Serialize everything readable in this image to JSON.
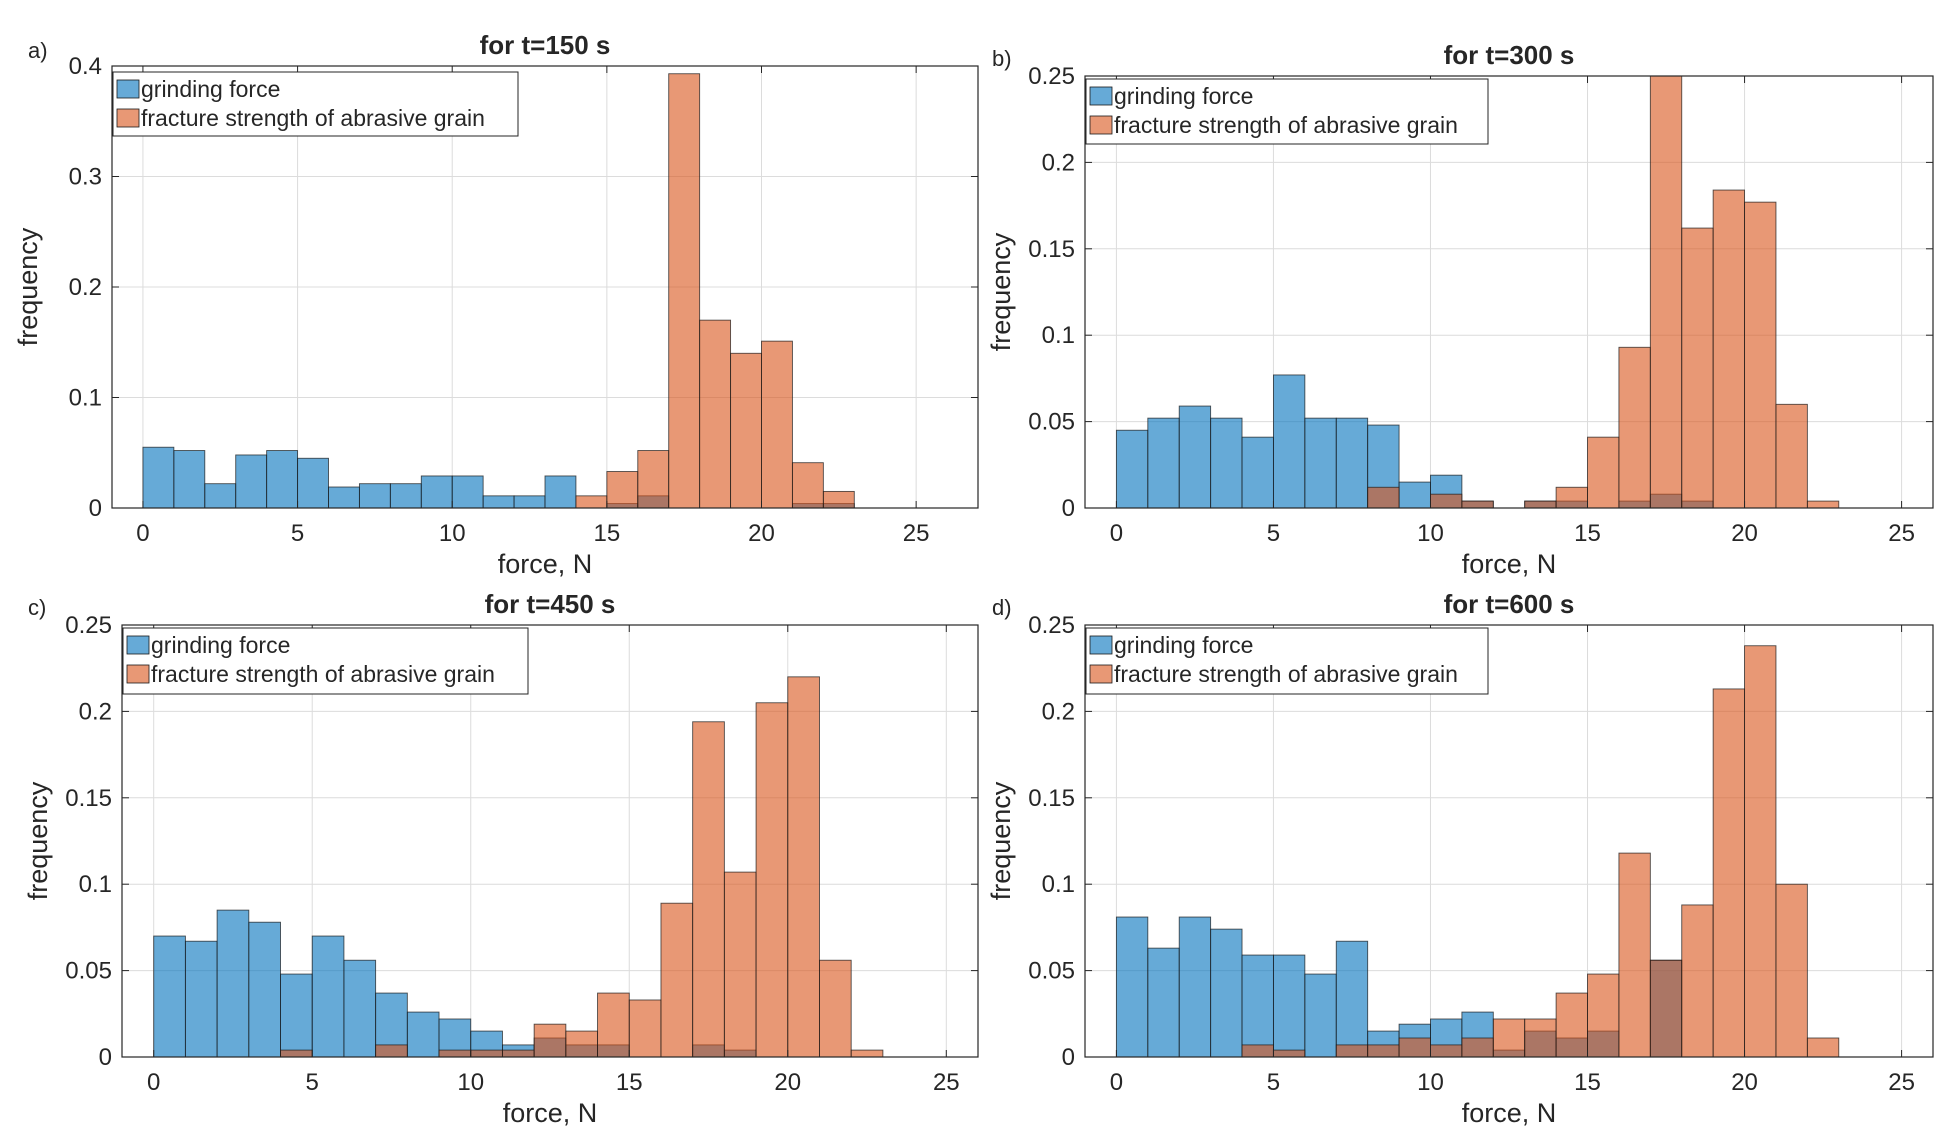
{
  "colors": {
    "grinding": "#0072BD",
    "fracture": "#D95319",
    "grid": "#dcdcdc",
    "axis": "#262626"
  },
  "chart_data": [
    {
      "panel": "a)",
      "type": "bar",
      "title": "for t=150 s",
      "xlabel": "force, N",
      "ylabel": "frequency",
      "xlim": [
        -1,
        27
      ],
      "ylim": [
        0,
        0.4
      ],
      "xticks": [
        "0",
        "5",
        "10",
        "15",
        "20",
        "25"
      ],
      "xtick_values": [
        0,
        5,
        10,
        15,
        20,
        25
      ],
      "yticks": [
        "0",
        "0.1",
        "0.2",
        "0.3",
        "0.4"
      ],
      "ytick_values": [
        0,
        0.1,
        0.2,
        0.3,
        0.4
      ],
      "bin_width": 1,
      "legend": [
        "grinding force",
        "fracture strength of abrasive grain"
      ],
      "series": [
        {
          "name": "grinding force",
          "bins": [
            0,
            1,
            2,
            3,
            4,
            5,
            6,
            7,
            8,
            9,
            10,
            11,
            12,
            13,
            14,
            15,
            16,
            21,
            22
          ],
          "values": [
            0.055,
            0.052,
            0.022,
            0.048,
            0.052,
            0.045,
            0.019,
            0.022,
            0.022,
            0.029,
            0.029,
            0.011,
            0.011,
            0.029,
            0,
            0.004,
            0.011,
            0.004,
            0.004
          ]
        },
        {
          "name": "fracture strength of abrasive grain",
          "bins": [
            14,
            15,
            16,
            17,
            18,
            19,
            20,
            21,
            22
          ],
          "values": [
            0.011,
            0.033,
            0.052,
            0.393,
            0.17,
            0.14,
            0.151,
            0.041,
            0.015
          ]
        }
      ]
    },
    {
      "panel": "b)",
      "type": "bar",
      "title": "for t=300 s",
      "xlabel": "force, N",
      "ylabel": "frequency",
      "xlim": [
        -1,
        26
      ],
      "ylim": [
        0,
        0.25
      ],
      "xticks": [
        "0",
        "5",
        "10",
        "15",
        "20",
        "25"
      ],
      "xtick_values": [
        0,
        5,
        10,
        15,
        20,
        25
      ],
      "yticks": [
        "0",
        "0.05",
        "0.1",
        "0.15",
        "0.2",
        "0.25"
      ],
      "ytick_values": [
        0,
        0.05,
        0.1,
        0.15,
        0.2,
        0.25
      ],
      "bin_width": 1,
      "legend": [
        "grinding force",
        "fracture strength of abrasive grain"
      ],
      "series": [
        {
          "name": "grinding force",
          "bins": [
            0,
            1,
            2,
            3,
            4,
            5,
            6,
            7,
            8,
            9,
            10,
            11,
            13,
            14,
            15,
            16,
            17,
            18
          ],
          "values": [
            0.045,
            0.052,
            0.059,
            0.052,
            0.041,
            0.077,
            0.052,
            0.052,
            0.048,
            0.015,
            0.019,
            0.004,
            0.004,
            0.004,
            0,
            0.004,
            0.008,
            0.004
          ]
        },
        {
          "name": "fracture strength of abrasive grain",
          "bins": [
            8,
            10,
            11,
            13,
            14,
            15,
            16,
            17,
            18,
            19,
            20,
            21,
            22
          ],
          "values": [
            0.012,
            0.008,
            0.004,
            0.004,
            0.012,
            0.041,
            0.093,
            0.25,
            0.162,
            0.184,
            0.177,
            0.06,
            0.004
          ]
        }
      ]
    },
    {
      "panel": "c)",
      "type": "bar",
      "title": "for t=450 s",
      "xlabel": "force, N",
      "ylabel": "frequency",
      "xlim": [
        -1,
        26
      ],
      "ylim": [
        0,
        0.25
      ],
      "xticks": [
        "0",
        "5",
        "10",
        "15",
        "20",
        "25"
      ],
      "xtick_values": [
        0,
        5,
        10,
        15,
        20,
        25
      ],
      "yticks": [
        "0",
        "0.05",
        "0.1",
        "0.15",
        "0.2",
        "0.25"
      ],
      "ytick_values": [
        0,
        0.05,
        0.1,
        0.15,
        0.2,
        0.25
      ],
      "bin_width": 1,
      "legend": [
        "grinding force",
        "fracture strength of abrasive grain"
      ],
      "series": [
        {
          "name": "grinding force",
          "bins": [
            0,
            1,
            2,
            3,
            4,
            5,
            6,
            7,
            8,
            9,
            10,
            11,
            12,
            13,
            14,
            17,
            18
          ],
          "values": [
            0.07,
            0.067,
            0.085,
            0.078,
            0.048,
            0.07,
            0.056,
            0.037,
            0.026,
            0.022,
            0.015,
            0.007,
            0.011,
            0.007,
            0.007,
            0.007,
            0.004
          ]
        },
        {
          "name": "fracture strength of abrasive grain",
          "bins": [
            4,
            7,
            9,
            10,
            11,
            12,
            13,
            14,
            15,
            16,
            17,
            18,
            19,
            20,
            21,
            22
          ],
          "values": [
            0.004,
            0.007,
            0.004,
            0.004,
            0.004,
            0.019,
            0.015,
            0.037,
            0.033,
            0.089,
            0.194,
            0.107,
            0.205,
            0.22,
            0.056,
            0.004
          ]
        }
      ]
    },
    {
      "panel": "d)",
      "type": "bar",
      "title": "for t=600 s",
      "xlabel": "force, N",
      "ylabel": "frequency",
      "xlim": [
        -1,
        26
      ],
      "ylim": [
        0,
        0.25
      ],
      "xticks": [
        "0",
        "5",
        "10",
        "15",
        "20",
        "25"
      ],
      "xtick_values": [
        0,
        5,
        10,
        15,
        20,
        25
      ],
      "yticks": [
        "0",
        "0.05",
        "0.1",
        "0.15",
        "0.2",
        "0.25"
      ],
      "ytick_values": [
        0,
        0.05,
        0.1,
        0.15,
        0.2,
        0.25
      ],
      "bin_width": 1,
      "legend": [
        "grinding force",
        "fracture strength of abrasive grain"
      ],
      "series": [
        {
          "name": "grinding force",
          "bins": [
            0,
            1,
            2,
            3,
            4,
            5,
            6,
            7,
            8,
            9,
            10,
            11,
            12,
            13,
            14,
            15,
            17
          ],
          "values": [
            0.081,
            0.063,
            0.081,
            0.074,
            0.059,
            0.059,
            0.048,
            0.067,
            0.015,
            0.019,
            0.022,
            0.026,
            0.004,
            0.015,
            0.011,
            0.015,
            0.056
          ]
        },
        {
          "name": "fracture strength of abrasive grain",
          "bins": [
            4,
            5,
            7,
            8,
            9,
            10,
            11,
            12,
            13,
            14,
            15,
            16,
            17,
            18,
            19,
            20,
            21,
            22
          ],
          "values": [
            0.007,
            0.004,
            0.007,
            0.007,
            0.011,
            0.007,
            0.011,
            0.022,
            0.022,
            0.037,
            0.048,
            0.118,
            0.056,
            0.088,
            0.213,
            0.238,
            0.1,
            0.011
          ]
        }
      ]
    }
  ]
}
